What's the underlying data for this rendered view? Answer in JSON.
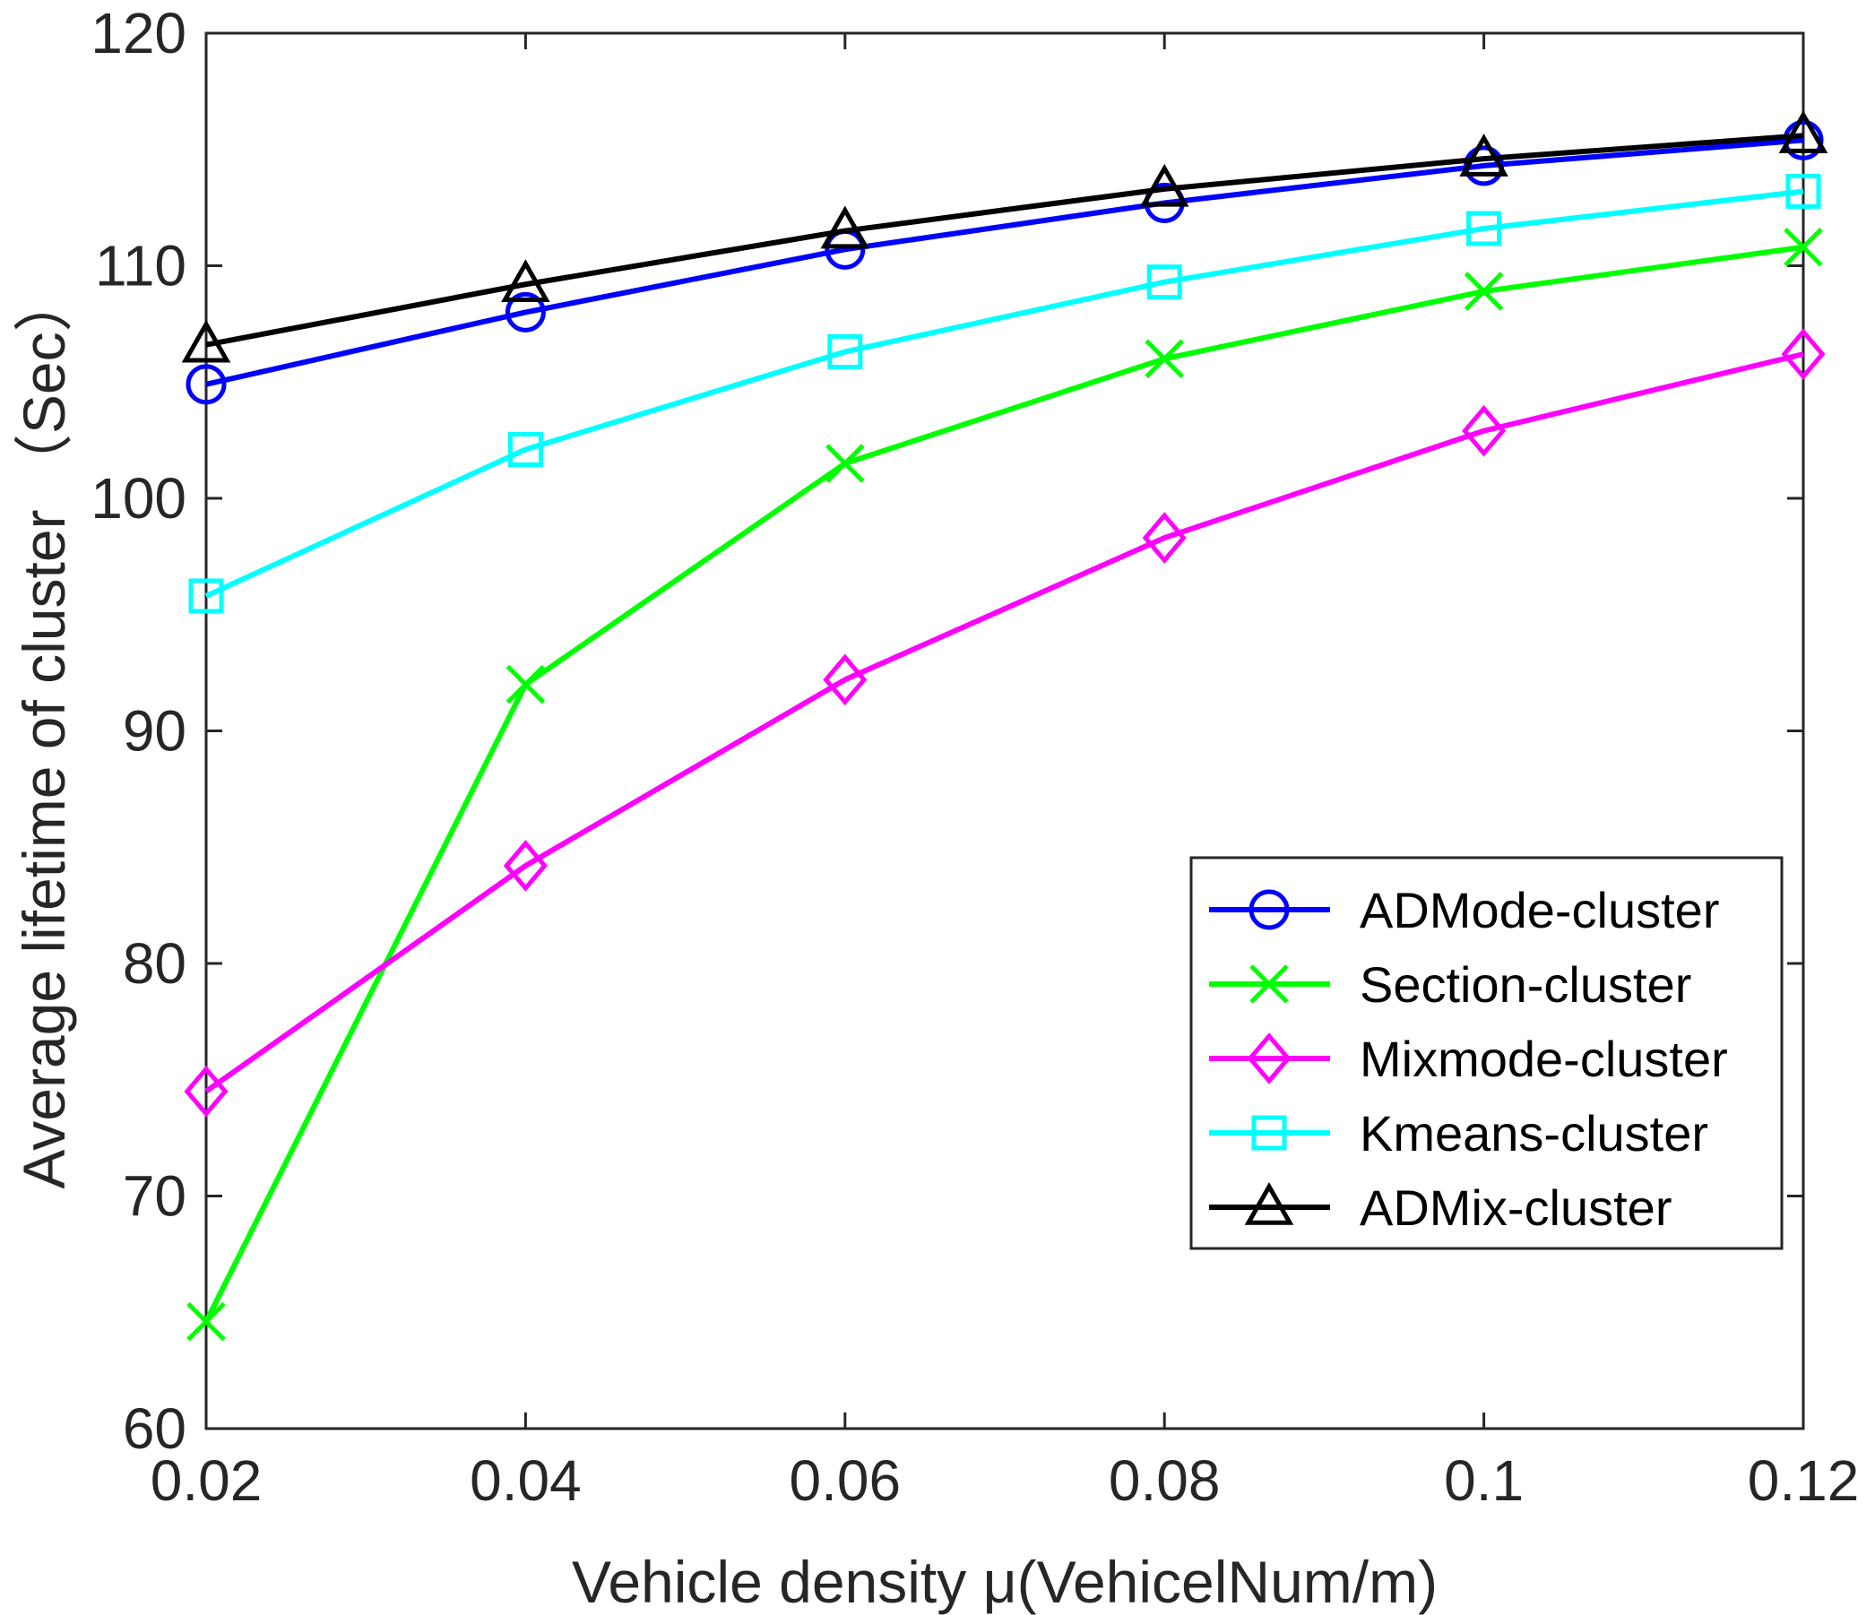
{
  "chart_data": {
    "type": "line",
    "title": "",
    "xlabel": "Vehicle density μ(VehicelNum/m)",
    "ylabel": "Average lifetime of cluster （Sec）",
    "x": [
      0.02,
      0.04,
      0.06,
      0.08,
      0.1,
      0.12
    ],
    "x_tick_labels": [
      "0.02",
      "0.04",
      "0.06",
      "0.08",
      "0.1",
      "0.12"
    ],
    "xlim": [
      0.02,
      0.12
    ],
    "ylim": [
      60,
      120
    ],
    "y_ticks": [
      60,
      70,
      80,
      90,
      100,
      110,
      120
    ],
    "y_tick_labels": [
      "60",
      "70",
      "80",
      "90",
      "100",
      "110",
      "120"
    ],
    "grid": false,
    "legend_position": "bottom-right",
    "series": [
      {
        "name": "ADMode-cluster",
        "color": "#0000ff",
        "marker": "circle",
        "values": [
          104.9,
          108.0,
          110.7,
          112.7,
          114.3,
          115.4
        ]
      },
      {
        "name": "Section-cluster",
        "color": "#00ff00",
        "marker": "x",
        "values": [
          64.6,
          92.0,
          101.5,
          106.0,
          108.9,
          110.8
        ]
      },
      {
        "name": "Mixmode-cluster",
        "color": "#ff00ff",
        "marker": "diamond",
        "values": [
          74.5,
          84.2,
          92.2,
          98.3,
          102.9,
          106.2
        ]
      },
      {
        "name": "Kmeans-cluster",
        "color": "#00ffff",
        "marker": "square",
        "values": [
          95.8,
          102.1,
          106.3,
          109.3,
          111.6,
          113.2
        ]
      },
      {
        "name": "ADMix-cluster",
        "color": "#000000",
        "marker": "triangle",
        "values": [
          106.6,
          109.2,
          111.5,
          113.3,
          114.6,
          115.6
        ]
      }
    ]
  }
}
